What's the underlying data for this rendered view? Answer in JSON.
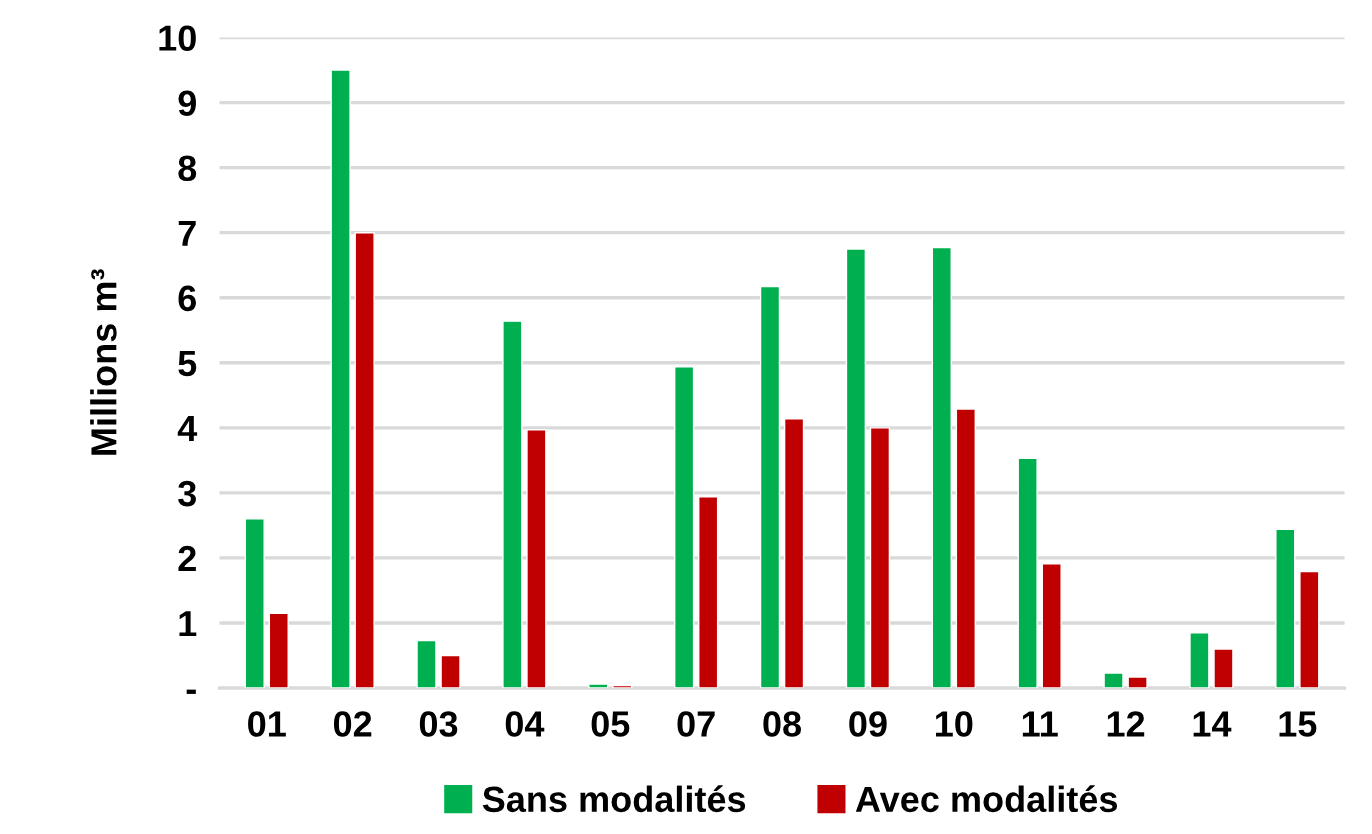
{
  "chart_data": {
    "type": "bar",
    "ylabel": "Millions m³",
    "categories": [
      "01",
      "02",
      "03",
      "04",
      "05",
      "07",
      "08",
      "09",
      "10",
      "11",
      "12",
      "14",
      "15"
    ],
    "series": [
      {
        "name": "Sans modalités",
        "color": "#00b050",
        "values": [
          2.6,
          9.5,
          0.73,
          5.64,
          0.06,
          4.94,
          6.17,
          6.75,
          6.77,
          3.53,
          0.23,
          0.85,
          2.44
        ]
      },
      {
        "name": "Avec modalités",
        "color": "#c00000",
        "values": [
          1.15,
          7.0,
          0.5,
          3.97,
          0.04,
          2.94,
          4.14,
          4.0,
          4.29,
          1.91,
          0.17,
          0.6,
          1.79
        ]
      }
    ],
    "ylim": [
      0,
      10
    ],
    "yticks": [
      {
        "value": 0,
        "label": "-"
      },
      1,
      2,
      3,
      4,
      5,
      6,
      7,
      8,
      9,
      10
    ],
    "grid": "y",
    "legend": "bottom"
  }
}
